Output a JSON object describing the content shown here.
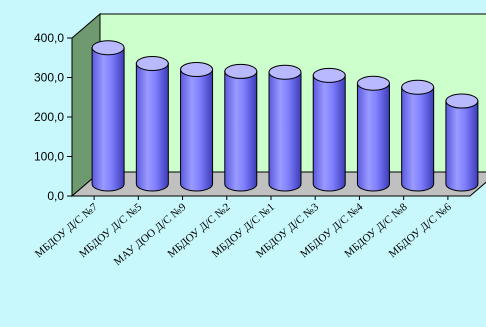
{
  "chart_data": {
    "type": "bar",
    "style": "3d-cylinder",
    "categories": [
      "МБДОУ Д/С №7",
      "МБДОУ Д/С №5",
      "МАУ ДОО Д/С №9",
      "МБДОУ Д/С №2",
      "МБДОУ Д/С №1",
      "МБДОУ Д/С №3",
      "МБДОУ Д/С №4",
      "МБДОУ Д/С №8",
      "МБДОУ Д/С №6"
    ],
    "values": [
      345,
      305,
      290,
      285,
      283,
      275,
      255,
      245,
      210
    ],
    "yticks": [
      "0,0",
      "100,0",
      "200,0",
      "300,0",
      "400,0"
    ],
    "ylim": [
      0,
      400
    ],
    "grid": false,
    "legend": "none",
    "colors": {
      "background": "#c8f8fc",
      "plot_wall": "#ccffcc",
      "side_wall": "#6f9a6f",
      "floor": "#c0c0c0",
      "bar_side": "#8080ff",
      "bar_top": "#b9b9ff",
      "bar_edge": "#000000"
    }
  }
}
